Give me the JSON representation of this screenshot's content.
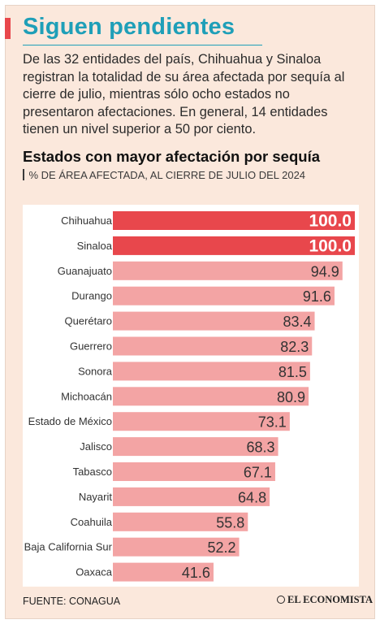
{
  "header": {
    "title": "Siguen pendientes",
    "intro": "De las 32 entidades del país, Chihuahua y Sinaloa registran la totalidad de su área afectada por sequía al cierre de julio, mientras sólo ocho estados no presentaron afectaciones. En general, 14 entidades tienen un nivel superior a 50 por ciento."
  },
  "footer": {
    "source": "FUENTE: CONAGUA",
    "logo": "EL ECONOMISTA"
  },
  "colors": {
    "title": "#1f9fb8",
    "accent": "#e8474c",
    "highlight_bar": "#e8474c",
    "bar": "#f3a4a4",
    "background": "#fbe8dc"
  },
  "chart_data": {
    "type": "bar",
    "orientation": "horizontal",
    "title": "Estados con mayor afectación por sequía",
    "subtitle": "% DE ÁREA AFECTADA, AL CIERRE DE JULIO DEL 2024",
    "xlim": [
      0,
      100
    ],
    "grid": false,
    "categories": [
      "Chihuahua",
      "Sinaloa",
      "Guanajuato",
      "Durango",
      "Querétaro",
      "Guerrero",
      "Sonora",
      "Michoacán",
      "Estado de México",
      "Jalisco",
      "Tabasco",
      "Nayarit",
      "Coahuila",
      "Baja California Sur",
      "Oaxaca"
    ],
    "values": [
      100.0,
      100.0,
      94.9,
      91.6,
      83.4,
      82.3,
      81.5,
      80.9,
      73.1,
      68.3,
      67.1,
      64.8,
      55.8,
      52.2,
      41.6
    ],
    "value_labels": [
      "100.0",
      "100.0",
      "94.9",
      "91.6",
      "83.4",
      "82.3",
      "81.5",
      "80.9",
      "73.1",
      "68.3",
      "67.1",
      "64.8",
      "55.8",
      "52.2",
      "41.6"
    ],
    "highlighted": [
      "Chihuahua",
      "Sinaloa"
    ]
  }
}
